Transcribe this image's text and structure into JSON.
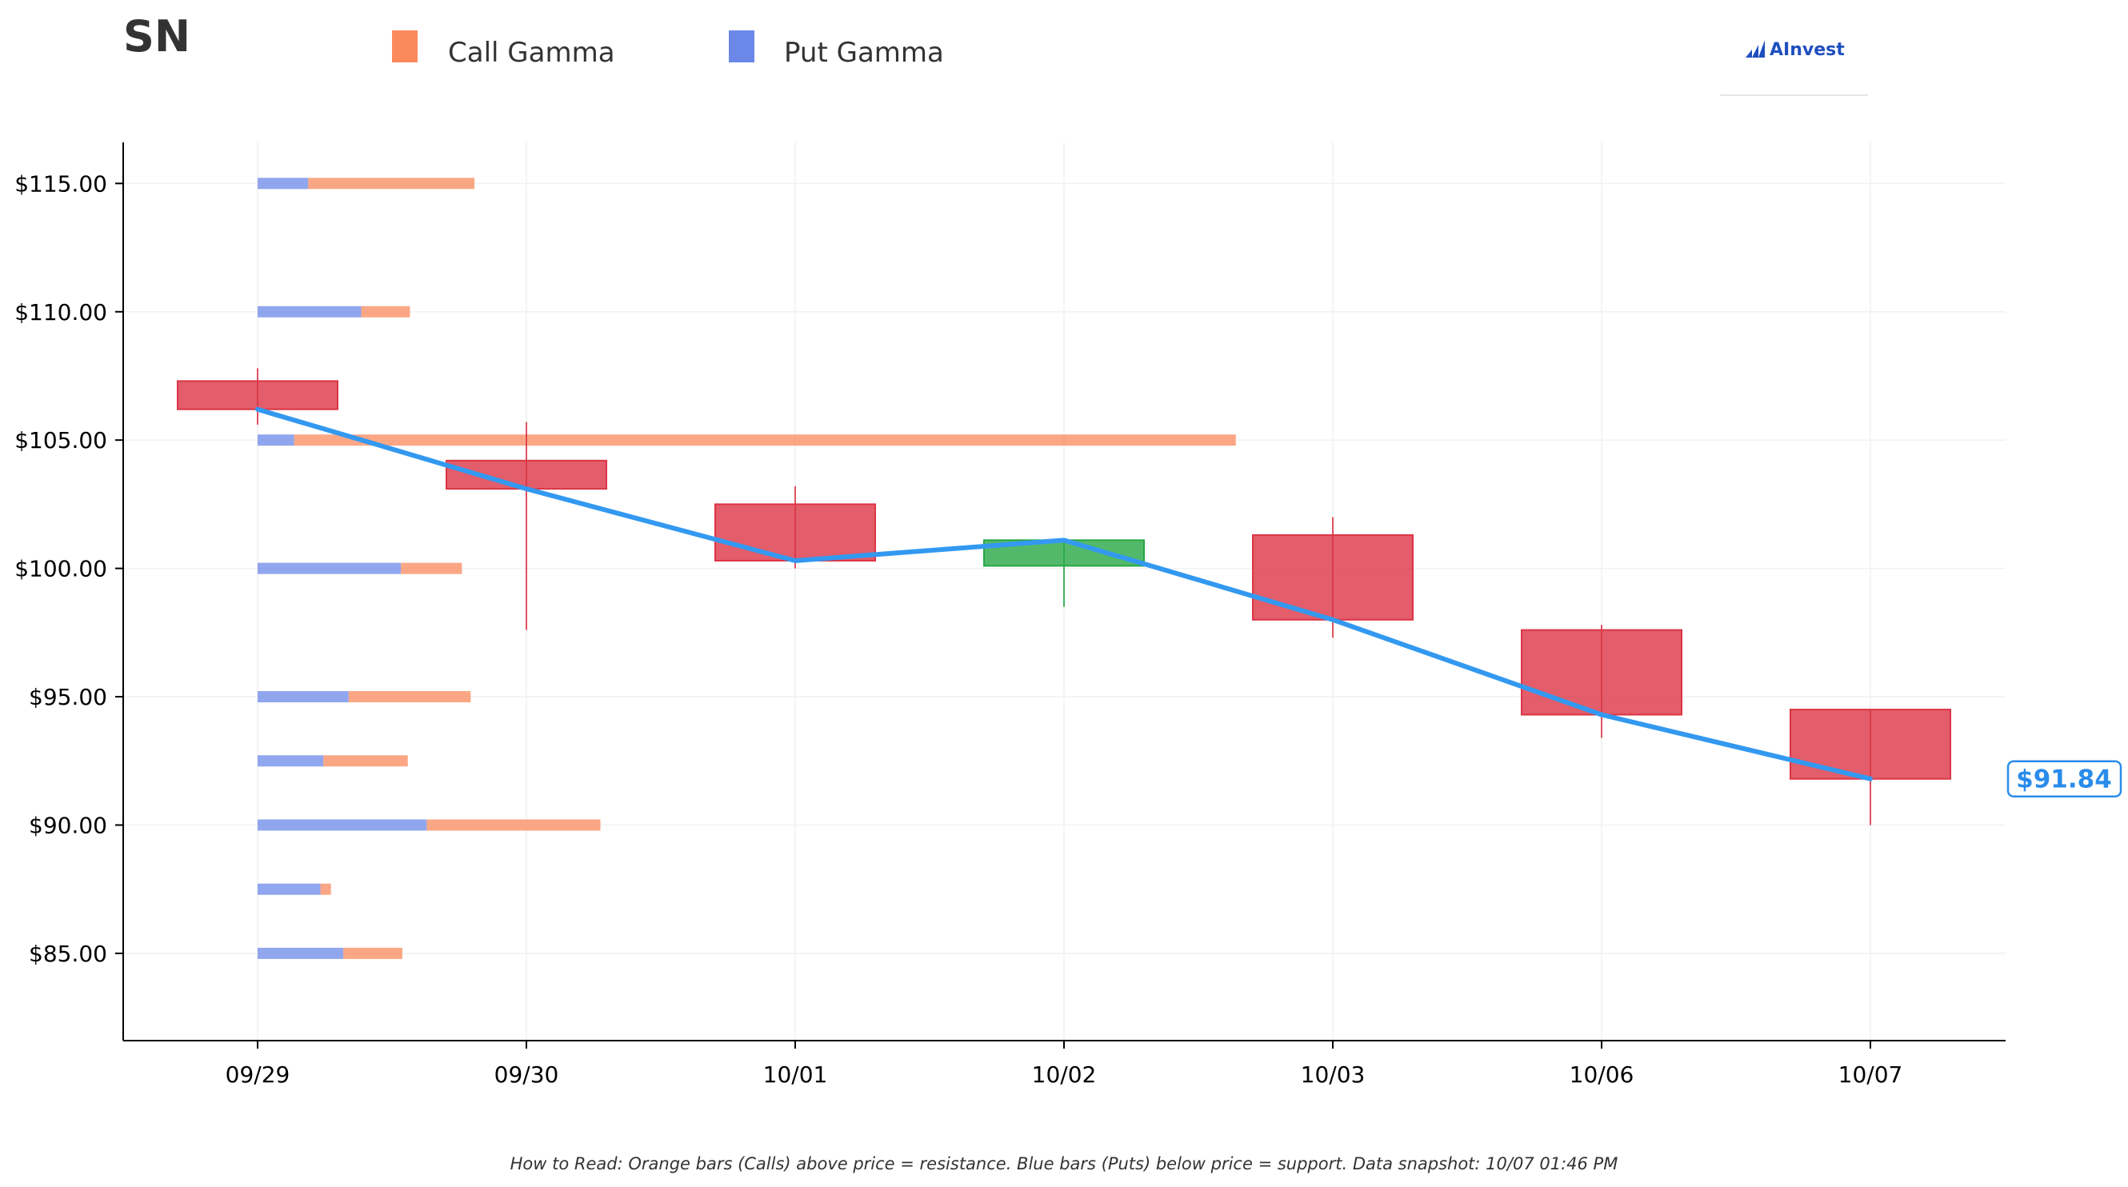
{
  "ticker": "SN",
  "legend": {
    "call_label": "Call Gamma",
    "put_label": "Put Gamma"
  },
  "logo": {
    "text": "AInvest"
  },
  "footnote": "How to Read: Orange bars (Calls) above price = resistance. Blue bars (Puts) below price = support. Data snapshot: 10/07 01:46 PM",
  "colors": {
    "call": "#fa8a5c",
    "put": "#6b88e8",
    "down_candle": "#dc3545",
    "up_candle": "#28a745",
    "price_line": "#3399f0",
    "price_label": "#2a8cea"
  },
  "chart_data": {
    "type": "candlestick",
    "categories": [
      "09/29",
      "09/30",
      "10/01",
      "10/02",
      "10/03",
      "10/06",
      "10/07"
    ],
    "ylim": [
      81.6,
      116.6
    ],
    "y_ticks": [
      {
        "value": 85,
        "label": "$85.00"
      },
      {
        "value": 90,
        "label": "$90.00"
      },
      {
        "value": 95,
        "label": "$95.00"
      },
      {
        "value": 100,
        "label": "$100.00"
      },
      {
        "value": 105,
        "label": "$105.00"
      },
      {
        "value": 110,
        "label": "$110.00"
      },
      {
        "value": 115,
        "label": "$115.00"
      }
    ],
    "grid": true,
    "candles": [
      {
        "date": "09/29",
        "open": 107.3,
        "high": 107.8,
        "low": 105.6,
        "close": 106.2
      },
      {
        "date": "09/30",
        "open": 104.2,
        "high": 105.7,
        "low": 97.6,
        "close": 103.1
      },
      {
        "date": "10/01",
        "open": 102.5,
        "high": 103.2,
        "low": 100.0,
        "close": 100.3
      },
      {
        "date": "10/02",
        "open": 100.1,
        "high": 101.1,
        "low": 98.5,
        "close": 101.1
      },
      {
        "date": "10/03",
        "open": 101.3,
        "high": 102.0,
        "low": 97.3,
        "close": 98.0
      },
      {
        "date": "10/06",
        "open": 97.6,
        "high": 97.8,
        "low": 93.4,
        "close": 94.3
      },
      {
        "date": "10/07",
        "open": 94.5,
        "high": 94.5,
        "low": 90.0,
        "close": 91.8
      }
    ],
    "price_line": [
      106.2,
      103.1,
      100.3,
      101.1,
      98.0,
      94.3,
      91.8
    ],
    "current_price_label": "$91.84",
    "gamma_axis_max": 1.0,
    "gamma_levels": [
      {
        "strike": 115,
        "put": 0.0537,
        "call": 0.1766
      },
      {
        "strike": 110,
        "put": 0.11,
        "call": 0.0518
      },
      {
        "strike": 105,
        "put": 0.0389,
        "call": 1.0
      },
      {
        "strike": 100,
        "put": 0.1522,
        "call": 0.0648
      },
      {
        "strike": 95,
        "put": 0.0967,
        "call": 0.1296
      },
      {
        "strike": 92.5,
        "put": 0.0699,
        "call": 0.0896
      },
      {
        "strike": 90,
        "put": 0.1796,
        "call": 0.1845
      },
      {
        "strike": 87.5,
        "put": 0.0667,
        "call": 0.0112
      },
      {
        "strike": 85,
        "put": 0.0911,
        "call": 0.0626
      }
    ]
  }
}
